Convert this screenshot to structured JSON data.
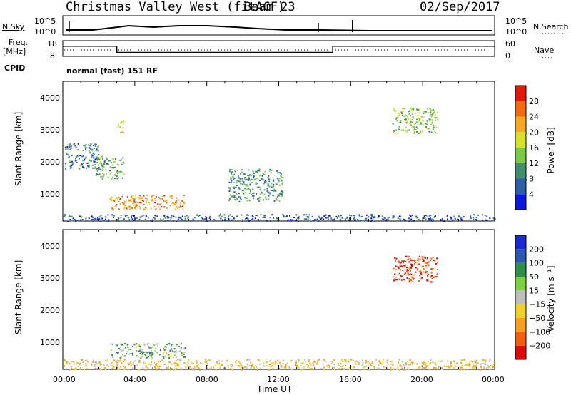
{
  "header": {
    "station": "Christmas Valley West (fitACF)",
    "beam": "Beam 23",
    "date": "02/Sep/2017"
  },
  "top_panel": {
    "left_label": "N.Sky",
    "right_label": "N.Search",
    "y_ticks": [
      "10^5",
      "10^0"
    ]
  },
  "freq_panel": {
    "left_label_line1": "Freq.",
    "left_label_line2": "[MHz]",
    "left_ticks": [
      "18",
      "8"
    ],
    "right_ticks": [
      "60",
      "0"
    ],
    "right_label": "Nave"
  },
  "cpid": {
    "label": "CPID",
    "text": "normal (fast) 151 RF"
  },
  "x_axis": {
    "ticks": [
      "00:00",
      "04:00",
      "08:00",
      "12:00",
      "16:00",
      "20:00",
      "00:00"
    ],
    "label": "Time UT"
  },
  "power_panel": {
    "ylabel": "Slant Range [km]",
    "y_ticks": [
      "1000",
      "2000",
      "3000",
      "4000"
    ],
    "colorbar_label": "Power [dB]",
    "colorbar_ticks": [
      "4",
      "8",
      "12",
      "16",
      "20",
      "24",
      "28"
    ],
    "colors": [
      "#0a1adc",
      "#2e5ea8",
      "#3f8f6a",
      "#7cc94a",
      "#d8e02a",
      "#f5a820",
      "#f06a10",
      "#e01a0a"
    ]
  },
  "velocity_panel": {
    "ylabel": "Slant Range [km]",
    "y_ticks": [
      "1000",
      "2000",
      "3000",
      "4000"
    ],
    "colorbar_label": "Velocity [m s⁻¹]",
    "colorbar_ticks": [
      "200",
      "100",
      "50",
      "15",
      "−15",
      "−50",
      "−100",
      "−200"
    ],
    "colors": [
      "#1a2ad0",
      "#2a5ab0",
      "#2f8f4a",
      "#7ad040",
      "#bebebe",
      "#f2d02a",
      "#f5a020",
      "#f06010",
      "#e00a0a"
    ]
  },
  "chart_data": {
    "type": "heatmap",
    "title": "Christmas Valley West (fitACF) Beam 23 02/Sep/2017",
    "xlabel": "Time UT",
    "ylabel": "Slant Range [km]",
    "xlim_hours": [
      0,
      24
    ],
    "ylim_km": [
      180,
      4500
    ],
    "frequency_steps": [
      {
        "start_h": 0,
        "end_h": 3,
        "freq_mhz": 14.5
      },
      {
        "start_h": 3,
        "end_h": 15,
        "freq_mhz": 10.5
      },
      {
        "start_h": 15,
        "end_h": 24,
        "freq_mhz": 14.5
      }
    ],
    "power_regions": [
      {
        "t0": 2.6,
        "t1": 6.8,
        "r0": 550,
        "r1": 1000,
        "power_db": 24
      },
      {
        "t0": 1.8,
        "t1": 3.4,
        "r0": 1500,
        "r1": 2200,
        "power_db": 12
      },
      {
        "t0": 3.0,
        "t1": 3.4,
        "r0": 2900,
        "r1": 3300,
        "power_db": 18
      },
      {
        "t0": 0.1,
        "t1": 2.0,
        "r0": 1800,
        "r1": 2600,
        "power_db": 8
      },
      {
        "t0": 9.2,
        "t1": 12.2,
        "r0": 800,
        "r1": 1800,
        "power_db": 10
      },
      {
        "t0": 18.3,
        "t1": 20.8,
        "r0": 2900,
        "r1": 3700,
        "power_db": 14
      },
      {
        "t0": 0,
        "t1": 24,
        "r0": 180,
        "r1": 400,
        "power_db": 6
      }
    ],
    "velocity_regions": [
      {
        "t0": 2.6,
        "t1": 6.8,
        "r0": 550,
        "r1": 1000,
        "velocity_ms": 30
      },
      {
        "t0": 18.3,
        "t1": 20.8,
        "r0": 2900,
        "r1": 3700,
        "velocity_ms": -150
      },
      {
        "t0": 0,
        "t1": 24,
        "r0": 180,
        "r1": 500,
        "velocity_ms": -40
      }
    ]
  }
}
